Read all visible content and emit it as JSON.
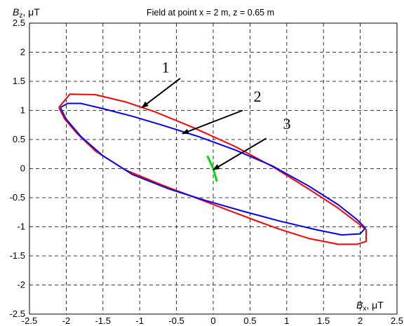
{
  "chart_data": {
    "type": "line",
    "title": "Field at point x = 2 m, z = 0.65 m",
    "xlabel": "Bx, μT",
    "ylabel": "Bz, μT",
    "xlim": [
      -2.5,
      2.5
    ],
    "ylim": [
      -2.5,
      2.5
    ],
    "xticks": [
      "-2.5",
      "-2",
      "-1.5",
      "-1",
      "-0.5",
      "0",
      "0.5",
      "1",
      "1.5",
      "2",
      "2.5"
    ],
    "yticks": [
      "-2.5",
      "-2",
      "-1.5",
      "-1",
      "-0.5",
      "0",
      "0.5",
      "1",
      "1.5",
      "2",
      "2.5"
    ],
    "grid": "dashed",
    "series": [
      {
        "name": "1",
        "color": "#ff0000",
        "points": [
          [
            -2.1,
            1.05
          ],
          [
            -1.95,
            1.28
          ],
          [
            -1.6,
            1.27
          ],
          [
            -1.2,
            1.15
          ],
          [
            -0.8,
            0.98
          ],
          [
            -0.3,
            0.72
          ],
          [
            0.3,
            0.38
          ],
          [
            0.8,
            0.04
          ],
          [
            1.3,
            -0.35
          ],
          [
            1.7,
            -0.68
          ],
          [
            2.0,
            -0.97
          ],
          [
            2.08,
            -1.05
          ],
          [
            2.08,
            -1.25
          ],
          [
            1.95,
            -1.3
          ],
          [
            1.7,
            -1.3
          ],
          [
            1.3,
            -1.2
          ],
          [
            0.9,
            -1.04
          ],
          [
            0.55,
            -0.88
          ],
          [
            0.3,
            -0.76
          ],
          [
            -0.2,
            -0.52
          ],
          [
            -0.7,
            -0.28
          ],
          [
            -1.2,
            -0.02
          ],
          [
            -1.6,
            0.3
          ],
          [
            -1.85,
            0.6
          ],
          [
            -2.02,
            0.85
          ],
          [
            -2.1,
            1.05
          ]
        ]
      },
      {
        "name": "2",
        "color": "#0000ff",
        "points": [
          [
            -2.08,
            1.05
          ],
          [
            -1.98,
            1.12
          ],
          [
            -1.8,
            1.12
          ],
          [
            -1.5,
            1.03
          ],
          [
            -1.1,
            0.9
          ],
          [
            -0.7,
            0.75
          ],
          [
            -0.2,
            0.55
          ],
          [
            0.3,
            0.32
          ],
          [
            0.8,
            0.05
          ],
          [
            1.3,
            -0.3
          ],
          [
            1.7,
            -0.62
          ],
          [
            1.95,
            -0.87
          ],
          [
            2.07,
            -1.02
          ],
          [
            2.0,
            -1.12
          ],
          [
            1.75,
            -1.14
          ],
          [
            1.4,
            -1.05
          ],
          [
            0.9,
            -0.9
          ],
          [
            0.4,
            -0.73
          ],
          [
            -0.1,
            -0.55
          ],
          [
            -0.6,
            -0.35
          ],
          [
            -1.1,
            -0.1
          ],
          [
            -1.5,
            0.22
          ],
          [
            -1.8,
            0.55
          ],
          [
            -2.0,
            0.85
          ],
          [
            -2.08,
            1.05
          ]
        ]
      },
      {
        "name": "3",
        "color": "#00dd00",
        "points": [
          [
            -0.08,
            0.22
          ],
          [
            0.0,
            0.0
          ],
          [
            0.05,
            -0.22
          ]
        ]
      }
    ],
    "annotations": [
      {
        "label": "1",
        "text_at": [
          -0.7,
          1.65
        ],
        "arrow_from": [
          -0.45,
          1.55
        ],
        "arrow_to": [
          -0.97,
          1.05
        ]
      },
      {
        "label": "2",
        "text_at": [
          0.55,
          1.15
        ],
        "arrow_from": [
          0.4,
          1.0
        ],
        "arrow_to": [
          -0.42,
          0.6
        ]
      },
      {
        "label": "3",
        "text_at": [
          0.95,
          0.68
        ],
        "arrow_from": [
          0.72,
          0.52
        ],
        "arrow_to": [
          0.0,
          -0.02
        ]
      }
    ]
  }
}
